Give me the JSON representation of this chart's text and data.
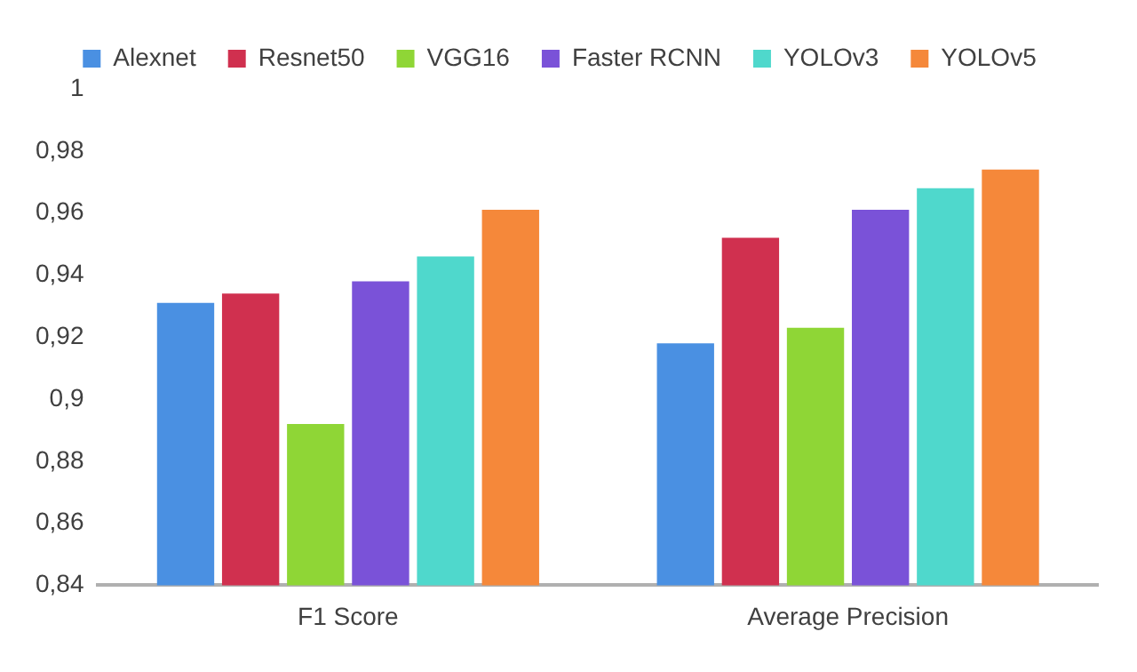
{
  "chart_data": {
    "type": "bar",
    "categories": [
      "F1 Score",
      "Average Precision"
    ],
    "series": [
      {
        "name": "Alexnet",
        "color": "#4a90e2",
        "values": [
          0.931,
          0.918
        ]
      },
      {
        "name": "Resnet50",
        "color": "#d0304f",
        "values": [
          0.934,
          0.952
        ]
      },
      {
        "name": "VGG16",
        "color": "#8fd636",
        "values": [
          0.892,
          0.923
        ]
      },
      {
        "name": "Faster RCNN",
        "color": "#7a52d8",
        "values": [
          0.938,
          0.961
        ]
      },
      {
        "name": "YOLOv3",
        "color": "#4fd8cc",
        "values": [
          0.946,
          0.968
        ]
      },
      {
        "name": "YOLOv5",
        "color": "#f5883a",
        "values": [
          0.961,
          0.974
        ]
      }
    ],
    "ylim": [
      0.84,
      1
    ],
    "yticks": [
      {
        "value": 0.84,
        "label": "0,84"
      },
      {
        "value": 0.86,
        "label": "0,86"
      },
      {
        "value": 0.88,
        "label": "0,88"
      },
      {
        "value": 0.9,
        "label": "0,9"
      },
      {
        "value": 0.92,
        "label": "0,92"
      },
      {
        "value": 0.94,
        "label": "0,94"
      },
      {
        "value": 0.96,
        "label": "0,96"
      },
      {
        "value": 0.98,
        "label": "0,98"
      },
      {
        "value": 1,
        "label": "1"
      }
    ],
    "grid": false,
    "legend": "top"
  }
}
